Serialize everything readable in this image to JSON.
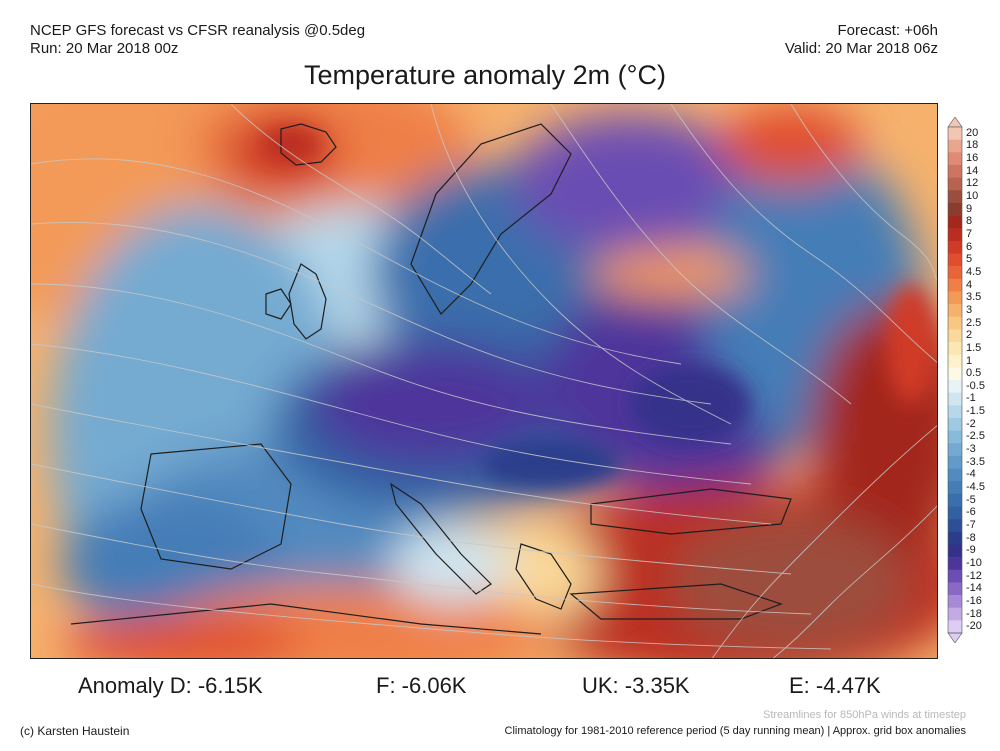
{
  "header": {
    "line1_left": "NCEP GFS forecast vs CFSR reanalysis @0.5deg",
    "line2_left": "Run: 20 Mar 2018 00z",
    "line1_right": "Forecast: +06h",
    "line2_right": "Valid: 20 Mar 2018 06z"
  },
  "title": "Temperature anomaly 2m (°C)",
  "colorbar": {
    "labels": [
      "20",
      "18",
      "16",
      "14",
      "12",
      "10",
      "9",
      "8",
      "7",
      "6",
      "5",
      "4.5",
      "4",
      "3.5",
      "3",
      "2.5",
      "2",
      "1.5",
      "1",
      "0.5",
      "-0.5",
      "-1",
      "-1.5",
      "-2",
      "-2.5",
      "-3",
      "-3.5",
      "-4",
      "-4.5",
      "-5",
      "-6",
      "-7",
      "-8",
      "-9",
      "-10",
      "-12",
      "-14",
      "-16",
      "-18",
      "-20"
    ],
    "colors": [
      "#f3c6b4",
      "#e9a58d",
      "#de8a74",
      "#cf7461",
      "#b86350",
      "#9d4d3c",
      "#8a3c2e",
      "#a3281c",
      "#bb2d20",
      "#d03a26",
      "#e04e2e",
      "#e8653a",
      "#ef7f46",
      "#f39a58",
      "#f6b26d",
      "#f8c882",
      "#fad99a",
      "#fbe7b3",
      "#fdf2cc",
      "#fdf9e4",
      "#e8f3f8",
      "#cfe6f1",
      "#b6d8ea",
      "#9ec9e2",
      "#88bad9",
      "#74aad1",
      "#629ac9",
      "#528bc0",
      "#457db7",
      "#3a6eac",
      "#3260a3",
      "#2c4f98",
      "#2a3d8b",
      "#35308a",
      "#4d359b",
      "#6b4db3",
      "#8a68c6",
      "#a889d7",
      "#c4aae5",
      "#ddcdf2"
    ]
  },
  "anomalies": [
    {
      "label": "Anomaly D: -6.15K"
    },
    {
      "label": "F: -6.06K"
    },
    {
      "label": "UK: -3.35K"
    },
    {
      "label": "E: -4.47K"
    }
  ],
  "footer": {
    "credit": "(c) Karsten Haustein",
    "streamlines_note": "Streamlines for 850hPa winds at timestep",
    "climatology_note": "Climatology for 1981-2010 reference period (5 day running mean) | Approx. grid box anomalies"
  },
  "map": {
    "region": "Europe",
    "overlay": "streamlines"
  }
}
